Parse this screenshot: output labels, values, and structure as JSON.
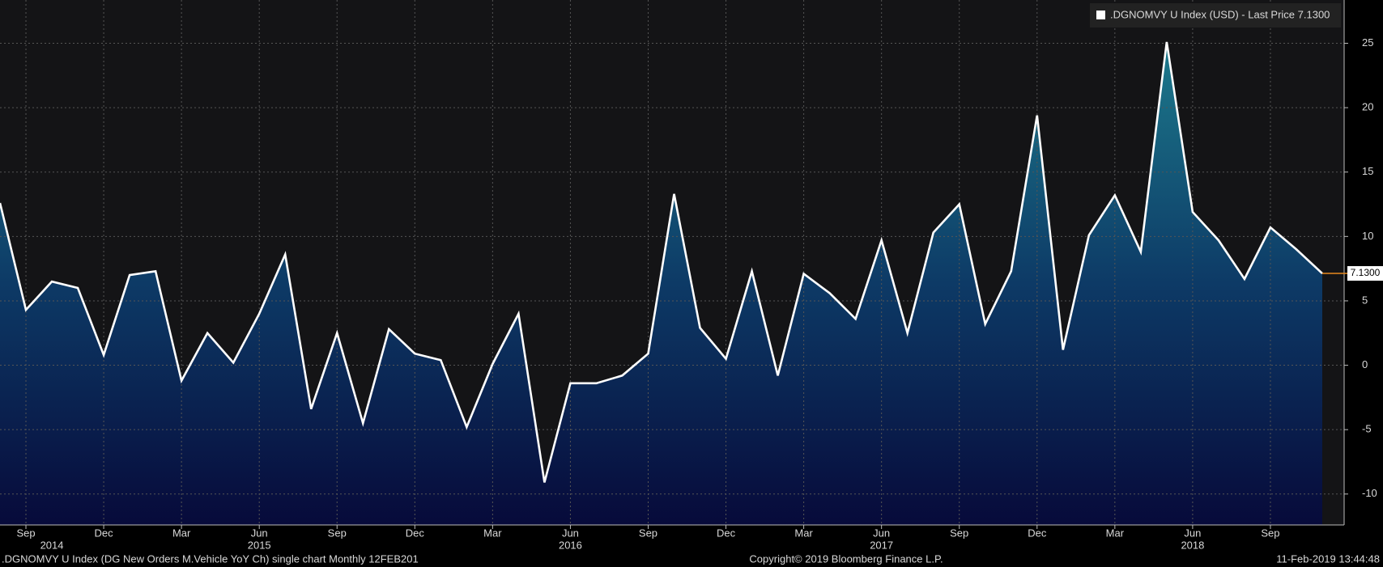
{
  "chart_data": {
    "type": "area",
    "legend": ".DGNOMVY U Index (USD) - Last Price 7.1300",
    "categories": [
      null,
      "Sep",
      null,
      null,
      "Dec",
      null,
      null,
      "Mar",
      null,
      null,
      "Jun",
      null,
      null,
      "Sep",
      null,
      null,
      "Dec",
      null,
      null,
      "Mar",
      null,
      null,
      "Jun",
      null,
      null,
      "Sep",
      null,
      null,
      "Dec",
      null,
      null,
      "Mar",
      null,
      null,
      "Jun",
      null,
      null,
      "Sep",
      null,
      null,
      "Dec",
      null,
      null,
      "Mar",
      null,
      null,
      "Jun",
      null,
      null,
      "Sep",
      null,
      null
    ],
    "year_categories": [
      null,
      null,
      "2014",
      null,
      null,
      null,
      null,
      null,
      null,
      null,
      "2015",
      null,
      null,
      null,
      null,
      null,
      null,
      null,
      null,
      null,
      null,
      null,
      "2016",
      null,
      null,
      null,
      null,
      null,
      null,
      null,
      null,
      null,
      null,
      null,
      "2017",
      null,
      null,
      null,
      null,
      null,
      null,
      null,
      null,
      null,
      null,
      null,
      "2018",
      null,
      null,
      null,
      null,
      null
    ],
    "series": [
      {
        "name": ".DGNOMVY U Index",
        "color": "#ffffff",
        "values": [
          12.6,
          4.3,
          6.5,
          6.0,
          0.8,
          7.0,
          7.3,
          -1.2,
          2.5,
          0.2,
          4.0,
          8.6,
          -3.4,
          2.5,
          -4.5,
          2.8,
          0.9,
          0.4,
          -4.8,
          0.1,
          4.0,
          -9.1,
          -1.4,
          -1.4,
          -0.8,
          0.9,
          13.3,
          2.9,
          0.5,
          7.3,
          -0.8,
          7.1,
          5.6,
          3.6,
          9.7,
          2.5,
          10.3,
          12.5,
          3.2,
          7.3,
          19.4,
          1.2,
          10.1,
          13.2,
          8.8,
          25.1,
          11.9,
          9.7,
          6.7,
          10.7,
          9.0,
          7.13
        ]
      }
    ],
    "last_value": 7.13,
    "last_value_label": "7.1300",
    "ylim": [
      -12.4,
      28.36
    ],
    "yticks": [
      -10,
      -5,
      0,
      5,
      10,
      15,
      20,
      25
    ],
    "grid": true,
    "footer_left": ".DGNOMVY U Index (DG New Orders M.Vehicle YoY Ch) single chart  Monthly 12FEB201",
    "footer_center": "Copyright© 2019 Bloomberg Finance L.P.",
    "footer_right": "11-Feb-2019 13:44:48"
  }
}
